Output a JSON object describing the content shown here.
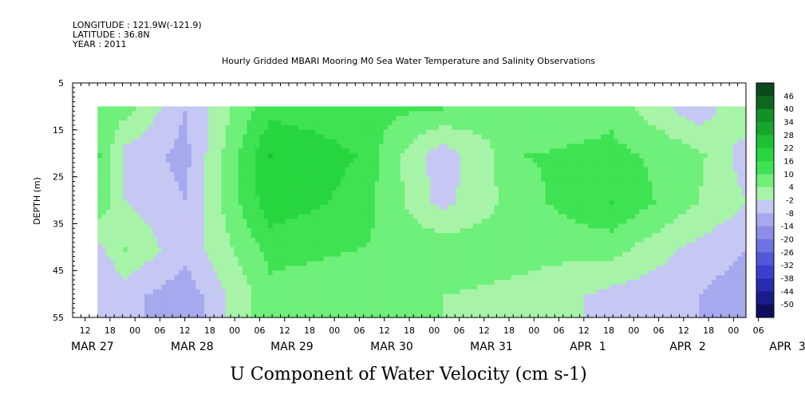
{
  "header": {
    "longitude": "LONGITUDE : 121.9W(-121.9)",
    "latitude": "LATITUDE : 36.8N",
    "year": "YEAR : 2011",
    "title": "Hourly Gridded MBARI Mooring M0 Sea Water Temperature and Salinity Observations"
  },
  "chart_data": {
    "type": "heatmap",
    "title": "Hourly Gridded MBARI Mooring M0 Sea Water Temperature and Salinity Observations",
    "xlabel": "U Component of Water Velocity (cm s-1)",
    "ylabel": "DEPTH (m)",
    "y_ticks": [
      "5",
      "15",
      "25",
      "35",
      "45",
      "55"
    ],
    "ylim": [
      55,
      5
    ],
    "x_ticks": [
      "12",
      "18",
      "00",
      "06",
      "12",
      "18",
      "00",
      "06",
      "12",
      "18",
      "00",
      "06",
      "12",
      "18",
      "00",
      "06",
      "12",
      "18",
      "00",
      "06",
      "12",
      "18",
      "00",
      "06",
      "12",
      "18",
      "00",
      "06"
    ],
    "date_labels": [
      "MAR 27",
      "MAR 28",
      "MAR 29",
      "MAR 30",
      "MAR 31",
      "APR  1",
      "APR  2",
      "APR  3"
    ],
    "data_start": "MAR 27 18",
    "data_top_depth": 10,
    "colorbar": {
      "levels": [
        "46",
        "40",
        "34",
        "28",
        "22",
        "16",
        "10",
        "4",
        "-2",
        "-8",
        "-14",
        "-20",
        "-26",
        "-32",
        "-38",
        "-44",
        "-50"
      ],
      "colors": [
        "#0b4a1e",
        "#10661f",
        "#149025",
        "#17a52c",
        "#1cc134",
        "#27d63e",
        "#3ee252",
        "#6ef07a",
        "#a7f4a8",
        "#c6c8f4",
        "#a7a9ee",
        "#8c8ee8",
        "#6f72e2",
        "#5557d9",
        "#3d3fcc",
        "#2a2cb0",
        "#191c8a",
        "#0d0f5e"
      ]
    },
    "series": [
      {
        "name": "",
        "description": "",
        "profile_columns": [
          {
            "hour": 0,
            "values_by_depth": {
              "10": 8,
              "20": 10,
              "30": 8,
              "40": -4,
              "50": -8
            }
          },
          {
            "hour": 6,
            "values_by_depth": {
              "10": 6,
              "20": -4,
              "30": -2,
              "40": 4,
              "50": -6
            }
          },
          {
            "hour": 20,
            "values_by_depth": {
              "10": -8,
              "20": -10,
              "30": -8,
              "40": -6,
              "50": -12
            }
          },
          {
            "hour": 40,
            "values_by_depth": {
              "10": 14,
              "20": 22,
              "30": 20,
              "40": 12,
              "50": 8
            }
          },
          {
            "hour": 60,
            "values_by_depth": {
              "10": 12,
              "20": 16,
              "30": 14,
              "40": 10,
              "50": 6
            }
          },
          {
            "hour": 80,
            "values_by_depth": {
              "10": 10,
              "20": -6,
              "30": -4,
              "40": 8,
              "50": 4
            }
          },
          {
            "hour": 100,
            "values_by_depth": {
              "10": 4,
              "20": 10,
              "30": 8,
              "40": 6,
              "50": 2
            }
          },
          {
            "hour": 120,
            "values_by_depth": {
              "10": 8,
              "20": 12,
              "30": 16,
              "40": 6,
              "50": -4
            }
          },
          {
            "hour": 140,
            "values_by_depth": {
              "10": -6,
              "20": 6,
              "30": 4,
              "40": -4,
              "50": -8
            }
          },
          {
            "hour": 152,
            "values_by_depth": {
              "10": 4,
              "20": -6,
              "30": -2,
              "40": -8,
              "50": -12
            }
          }
        ]
      }
    ]
  }
}
